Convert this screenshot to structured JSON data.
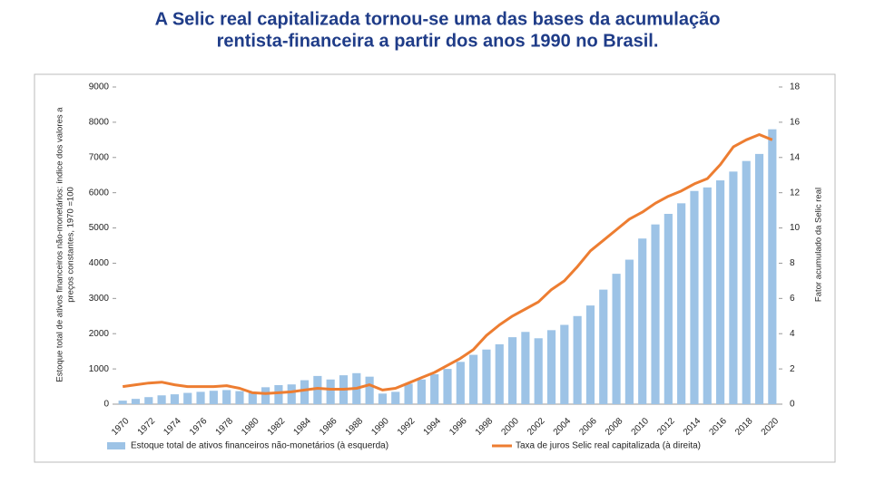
{
  "chart_data": {
    "type": "combo",
    "title": [
      "A Selic real capitalizada tornou-se uma das bases da acumulação",
      "rentista-financeira a partir dos anos 1990 no Brasil."
    ],
    "y_label": [
      "Estoque total de ativos financeiros não-monetários: índice dos valores a",
      "preços constantes, 1970 =100"
    ],
    "y2_label": "Fator acumulado da Selic real",
    "categories": [
      "1970",
      null,
      "1972",
      null,
      "1974",
      null,
      "1976",
      null,
      "1978",
      null,
      "1980",
      null,
      "1982",
      null,
      "1984",
      null,
      "1986",
      null,
      "1988",
      null,
      "1990",
      null,
      "1992",
      null,
      "1994",
      null,
      "1996",
      null,
      "1998",
      null,
      "2000",
      null,
      "2002",
      null,
      "2004",
      null,
      "2006",
      null,
      "2008",
      null,
      "2010",
      null,
      "2012",
      null,
      "2014",
      null,
      "2016",
      null,
      "2018",
      null,
      "2020"
    ],
    "series": [
      {
        "name": "Estoque total de ativos financeiros não-monetários  (à esquerda)",
        "type": "bar",
        "color": "#9dc3e6",
        "values": [
          100,
          150,
          200,
          250,
          280,
          320,
          350,
          380,
          400,
          370,
          350,
          480,
          540,
          560,
          680,
          800,
          700,
          820,
          880,
          780,
          300,
          350,
          580,
          700,
          850,
          1000,
          1200,
          1400,
          1550,
          1700,
          1900,
          2050,
          1870,
          2100,
          2250,
          2500,
          2800,
          3250,
          3700,
          4100,
          4700,
          5100,
          5400,
          5700,
          6050,
          6150,
          6350,
          6600,
          6900,
          7100,
          7800
        ]
      },
      {
        "name": "Taxa de juros Selic real capitalizada (à direita)",
        "type": "line",
        "axis": "y2",
        "color": "#ed7d31",
        "values": [
          1.0,
          1.1,
          1.2,
          1.25,
          1.1,
          1.0,
          1.0,
          1.0,
          1.05,
          0.9,
          0.65,
          0.6,
          0.65,
          0.7,
          0.8,
          0.9,
          0.85,
          0.85,
          0.9,
          1.1,
          0.8,
          0.9,
          1.2,
          1.5,
          1.8,
          2.2,
          2.6,
          3.1,
          3.9,
          4.5,
          5.0,
          5.4,
          5.8,
          6.5,
          7.0,
          7.8,
          8.7,
          9.3,
          9.9,
          10.5,
          10.9,
          11.4,
          11.8,
          12.1,
          12.5,
          12.8,
          13.6,
          14.6,
          15.0,
          15.3,
          15.0
        ]
      }
    ],
    "ylim": [
      0,
      9000
    ],
    "yticks": [
      0,
      1000,
      2000,
      3000,
      4000,
      5000,
      6000,
      7000,
      8000,
      9000
    ],
    "y2lim": [
      0,
      18
    ],
    "y2ticks": [
      0,
      2,
      4,
      6,
      8,
      10,
      12,
      14,
      16,
      18
    ],
    "legend": "bottom"
  }
}
